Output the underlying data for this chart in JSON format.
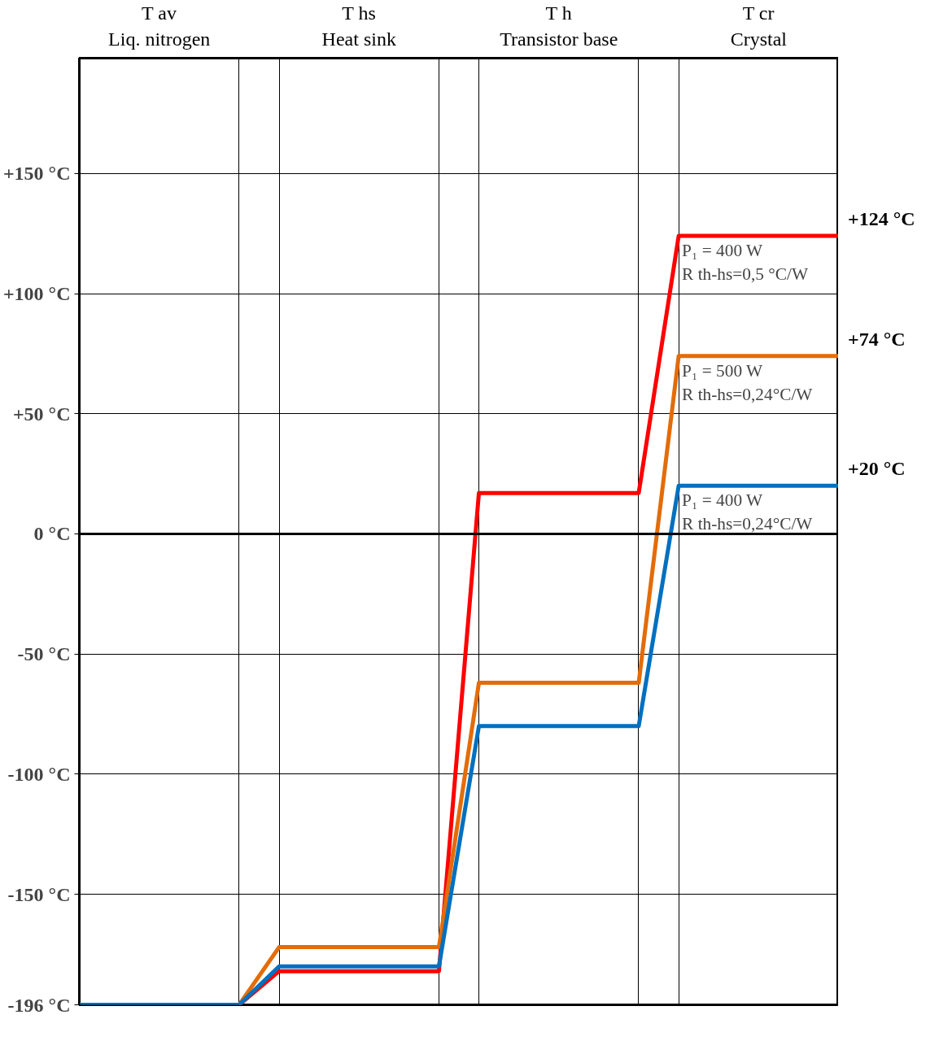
{
  "chart_data": {
    "type": "line",
    "categories": [
      null,
      null,
      null,
      null,
      null,
      null,
      null,
      null,
      null,
      null,
      null,
      null,
      null,
      null,
      null,
      null,
      null,
      null,
      null,
      null
    ],
    "series": [
      {
        "color": "#ff0000",
        "values": [
          null,
          null,
          null,
          null,
          -196,
          -182,
          -182,
          -182,
          -182,
          -182,
          17,
          17,
          17,
          17,
          17,
          124,
          124,
          124,
          124,
          124
        ]
      },
      {
        "color": "#e36c09",
        "values": [
          null,
          null,
          null,
          null,
          -196,
          -172,
          -172,
          -172,
          -172,
          -172,
          -62,
          -62,
          -62,
          -62,
          -62,
          74,
          74,
          74,
          74,
          74
        ]
      },
      {
        "color": "#0070c0",
        "values": [
          -196,
          -196,
          -196,
          -196,
          -196,
          -180,
          -180,
          -180,
          -180,
          -180,
          -80,
          -80,
          -80,
          -80,
          -80,
          20,
          20,
          20,
          20,
          20
        ]
      }
    ],
    "ylim": [
      -196,
      198
    ],
    "yticks": [
      {
        "value": 150,
        "label": "+150 °C"
      },
      {
        "value": 100,
        "label": "+100 °C"
      },
      {
        "value": 50,
        "label": "+50 °C"
      },
      {
        "value": 0,
        "label": "0 °C"
      },
      {
        "value": -50,
        "label": "-50 °C"
      },
      {
        "value": -100,
        "label": "-100 °C"
      },
      {
        "value": -150,
        "label": "-150 °C"
      },
      {
        "value": -196,
        "label": "-196 °C"
      }
    ],
    "grid": true,
    "ref_lines": [
      {
        "axis": "y",
        "value": 0,
        "color": "#000000"
      }
    ],
    "annotations": [
      "T av\nLiq. nitrogen",
      "T hs\nHeat sink",
      "T h\nTransistor base",
      "T cr\nCrystal",
      "+124 °C",
      "+74 °C",
      "+20 °C",
      "P₁ = 400 W\nR th-hs=0,5 °C/W",
      "P₁ = 500 W\nR th-hs=0,24°C/W",
      "P₁ = 400 W\nR th-hs=0,24°C/W"
    ]
  }
}
